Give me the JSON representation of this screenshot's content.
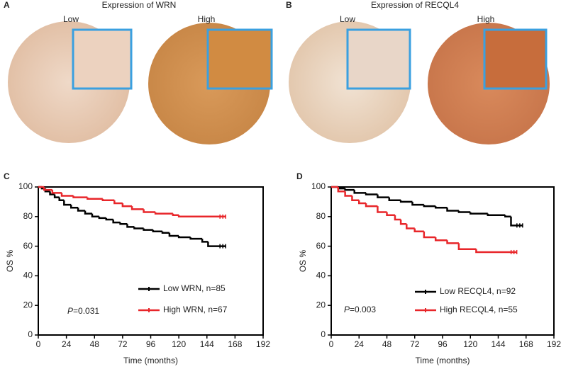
{
  "panels": [
    {
      "label": "A",
      "title": "Expression of WRN",
      "images": [
        "Low",
        "High"
      ]
    },
    {
      "label": "B",
      "title": "Expression of RECQL4",
      "images": [
        "Low",
        "High"
      ]
    }
  ],
  "chart_data": [
    {
      "type": "line",
      "label": "C",
      "xlabel": "Time (months)",
      "ylabel": "OS %",
      "xlim": [
        0,
        192
      ],
      "xticks": [
        0,
        24,
        48,
        72,
        96,
        120,
        144,
        168,
        192
      ],
      "ylim": [
        0,
        100
      ],
      "yticks": [
        0,
        20,
        40,
        60,
        80,
        100
      ],
      "p_symbol": "P",
      "p_text": "=0.031",
      "legend": "lower right",
      "series": [
        {
          "name": "Low WRN, n=85",
          "color": "#000000",
          "x": [
            0,
            3,
            6,
            10,
            14,
            18,
            22,
            28,
            34,
            40,
            46,
            52,
            58,
            64,
            70,
            76,
            82,
            90,
            98,
            106,
            112,
            120,
            130,
            140,
            145,
            160
          ],
          "values": [
            100,
            99,
            97,
            95,
            93,
            91,
            88,
            86,
            84,
            82,
            80,
            79,
            78,
            76,
            75,
            73,
            72,
            71,
            70,
            69,
            67,
            66,
            65,
            63,
            60,
            60
          ]
        },
        {
          "name": "High WRN, n=67",
          "color": "#e8262a",
          "x": [
            0,
            5,
            12,
            20,
            30,
            42,
            55,
            65,
            72,
            80,
            90,
            100,
            115,
            120,
            160
          ],
          "values": [
            100,
            98,
            96,
            94,
            93,
            92,
            91,
            89,
            87,
            85,
            83,
            82,
            81,
            80,
            80
          ]
        }
      ]
    },
    {
      "type": "line",
      "label": "D",
      "xlabel": "Time (months)",
      "ylabel": "OS %",
      "xlim": [
        0,
        192
      ],
      "xticks": [
        0,
        24,
        48,
        72,
        96,
        120,
        144,
        168,
        192
      ],
      "ylim": [
        0,
        100
      ],
      "yticks": [
        0,
        20,
        40,
        60,
        80,
        100
      ],
      "p_symbol": "P",
      "p_text": "=0.003",
      "legend": "lower right",
      "series": [
        {
          "name": "Low RECQL4, n=92",
          "color": "#000000",
          "x": [
            0,
            6,
            12,
            20,
            30,
            40,
            50,
            60,
            70,
            80,
            90,
            100,
            110,
            120,
            135,
            150,
            155,
            165
          ],
          "values": [
            100,
            99,
            98,
            96,
            95,
            93,
            91,
            90,
            88,
            87,
            86,
            84,
            83,
            82,
            81,
            80,
            74,
            74
          ]
        },
        {
          "name": "High RECQL4, n=55",
          "color": "#e8262a",
          "x": [
            0,
            6,
            12,
            18,
            24,
            30,
            40,
            48,
            55,
            60,
            65,
            72,
            80,
            90,
            100,
            110,
            125,
            160
          ],
          "values": [
            100,
            97,
            94,
            91,
            89,
            87,
            83,
            81,
            78,
            75,
            72,
            70,
            66,
            64,
            62,
            58,
            56,
            56
          ]
        }
      ]
    }
  ]
}
